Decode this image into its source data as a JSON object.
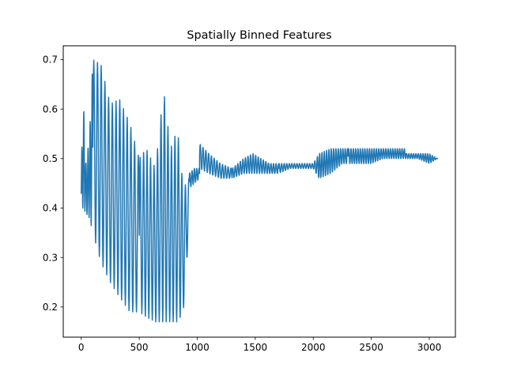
{
  "chart_data": {
    "type": "line",
    "title": "Spatially Binned Features",
    "xlabel": "",
    "ylabel": "",
    "xlim": [
      -155,
      3225
    ],
    "ylim": [
      0.139,
      0.728
    ],
    "xticks": [
      0,
      500,
      1000,
      1500,
      2000,
      2500,
      3000
    ],
    "yticks": [
      0.2,
      0.3,
      0.4,
      0.5,
      0.6,
      0.7
    ],
    "xtick_labels": [
      "0",
      "500",
      "1000",
      "1500",
      "2000",
      "2500",
      "3000"
    ],
    "ytick_labels": [
      "0.2",
      "0.3",
      "0.4",
      "0.5",
      "0.6",
      "0.7"
    ],
    "grid": false,
    "line_color": "#1f77b4",
    "series": [
      {
        "segments": [
          {
            "x_start": 0,
            "x_end": 100,
            "period": 18,
            "envelope": [
              [
                0,
                0.4,
                0.46
              ],
              [
                15,
                0.4,
                0.64
              ],
              [
                40,
                0.39,
                0.49
              ],
              [
                70,
                0.38,
                0.54
              ],
              [
                100,
                0.35,
                0.7
              ]
            ]
          },
          {
            "x_start": 100,
            "x_end": 500,
            "period": 32,
            "envelope": [
              [
                100,
                0.35,
                0.7
              ],
              [
                170,
                0.29,
                0.69
              ],
              [
                250,
                0.25,
                0.61
              ],
              [
                330,
                0.22,
                0.62
              ],
              [
                420,
                0.19,
                0.57
              ],
              [
                500,
                0.19,
                0.5
              ]
            ]
          },
          {
            "x_start": 500,
            "x_end": 930,
            "period": 30,
            "envelope": [
              [
                500,
                0.19,
                0.5
              ],
              [
                560,
                0.18,
                0.52
              ],
              [
                640,
                0.17,
                0.48
              ],
              [
                710,
                0.17,
                0.64
              ],
              [
                770,
                0.17,
                0.52
              ],
              [
                830,
                0.17,
                0.56
              ],
              [
                880,
                0.19,
                0.44
              ],
              [
                930,
                0.36,
                0.46
              ]
            ]
          },
          {
            "x_start": 930,
            "x_end": 1020,
            "period": 20,
            "envelope": [
              [
                930,
                0.44,
                0.47
              ],
              [
                975,
                0.45,
                0.48
              ],
              [
                1020,
                0.46,
                0.48
              ]
            ]
          },
          {
            "x_start": 1020,
            "x_end": 1300,
            "period": 24,
            "envelope": [
              [
                1020,
                0.48,
                0.53
              ],
              [
                1100,
                0.47,
                0.51
              ],
              [
                1200,
                0.46,
                0.49
              ],
              [
                1300,
                0.46,
                0.48
              ]
            ]
          },
          {
            "x_start": 1300,
            "x_end": 1700,
            "period": 22,
            "envelope": [
              [
                1300,
                0.46,
                0.48
              ],
              [
                1400,
                0.47,
                0.5
              ],
              [
                1480,
                0.47,
                0.51
              ],
              [
                1550,
                0.47,
                0.5
              ],
              [
                1620,
                0.47,
                0.49
              ],
              [
                1700,
                0.47,
                0.49
              ]
            ]
          },
          {
            "x_start": 1700,
            "x_end": 2050,
            "period": 22,
            "envelope": [
              [
                1700,
                0.47,
                0.49
              ],
              [
                1800,
                0.48,
                0.49
              ],
              [
                1900,
                0.48,
                0.49
              ],
              [
                2000,
                0.48,
                0.49
              ],
              [
                2050,
                0.46,
                0.51
              ]
            ]
          },
          {
            "x_start": 2050,
            "x_end": 2300,
            "period": 20,
            "envelope": [
              [
                2050,
                0.46,
                0.51
              ],
              [
                2150,
                0.47,
                0.52
              ],
              [
                2250,
                0.49,
                0.52
              ],
              [
                2300,
                0.49,
                0.52
              ]
            ]
          },
          {
            "x_start": 2300,
            "x_end": 2800,
            "period": 20,
            "envelope": [
              [
                2300,
                0.49,
                0.52
              ],
              [
                2400,
                0.49,
                0.52
              ],
              [
                2500,
                0.49,
                0.52
              ],
              [
                2600,
                0.5,
                0.52
              ],
              [
                2700,
                0.5,
                0.52
              ],
              [
                2800,
                0.5,
                0.52
              ]
            ]
          },
          {
            "x_start": 2800,
            "x_end": 3070,
            "period": 20,
            "envelope": [
              [
                2800,
                0.5,
                0.51
              ],
              [
                2900,
                0.5,
                0.51
              ],
              [
                3000,
                0.49,
                0.51
              ],
              [
                3070,
                0.5,
                0.5
              ]
            ]
          }
        ]
      }
    ]
  }
}
